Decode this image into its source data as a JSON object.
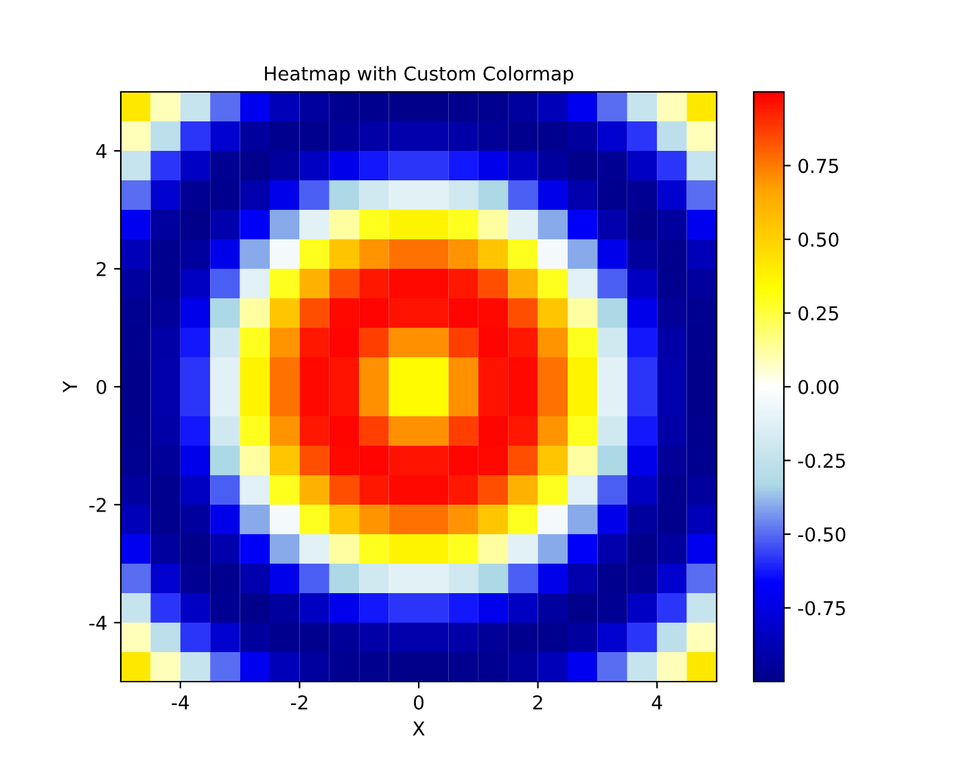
{
  "chart_data": {
    "type": "heatmap",
    "title": "Heatmap with Custom Colormap",
    "xlabel": "X",
    "ylabel": "Y",
    "x": [
      -4.75,
      -4.25,
      -3.75,
      -3.25,
      -2.75,
      -2.25,
      -1.75,
      -1.25,
      -0.75,
      -0.25,
      0.25,
      0.75,
      1.25,
      1.75,
      2.25,
      2.75,
      3.25,
      3.75,
      4.25,
      4.75
    ],
    "y": [
      4.75,
      4.25,
      3.75,
      3.25,
      2.75,
      2.25,
      1.75,
      1.25,
      0.75,
      0.25,
      -0.25,
      -0.75,
      -1.25,
      -1.75,
      -2.25,
      -2.75,
      -3.25,
      -3.75,
      -4.25,
      -4.75
    ],
    "xlim": [
      -5,
      5
    ],
    "ylim": [
      -5,
      5
    ],
    "xticks": [
      -4,
      -2,
      0,
      2,
      4
    ],
    "yticks": [
      -4,
      -2,
      0,
      2,
      4
    ],
    "colors": [
      "#00008b",
      "#0000ff",
      "#add8e6",
      "#ffffff",
      "#ffff00",
      "#ffa500",
      "#ff0000"
    ],
    "clim": [
      -1,
      1
    ],
    "cticks": [
      -0.75,
      {
        "value": -0.5,
        "label": "-0.50"
      },
      -0.25,
      {
        "value": 0,
        "label": "0.00"
      },
      0.25,
      {
        "value": 0.5,
        "label": "0.50"
      },
      0.75
    ],
    "cells": [
      [
        0.42,
        0.09,
        -0.23,
        -0.5,
        -0.71,
        -0.86,
        -0.94,
        -0.98,
        -0.99,
        -1.0,
        -1.0,
        -0.99,
        -0.98,
        -0.94,
        -0.86,
        -0.71,
        -0.5,
        -0.23,
        0.09,
        0.42
      ],
      [
        0.09,
        -0.27,
        -0.58,
        -0.8,
        -0.94,
        -0.99,
        -0.99,
        -0.96,
        -0.92,
        -0.9,
        -0.9,
        -0.92,
        -0.96,
        -0.99,
        -0.99,
        -0.94,
        -0.8,
        -0.58,
        -0.27,
        0.09
      ],
      [
        -0.23,
        -0.58,
        -0.83,
        -0.97,
        -1.0,
        -0.94,
        -0.84,
        -0.72,
        -0.63,
        -0.58,
        -0.58,
        -0.63,
        -0.72,
        -0.84,
        -0.94,
        -1.0,
        -0.97,
        -0.83,
        -0.58,
        -0.23
      ],
      [
        -0.5,
        -0.8,
        -0.97,
        -0.99,
        -0.9,
        -0.72,
        -0.52,
        -0.33,
        -0.19,
        -0.12,
        -0.12,
        -0.19,
        -0.33,
        -0.52,
        -0.72,
        -0.9,
        -0.99,
        -0.97,
        -0.8,
        -0.5
      ],
      [
        -0.71,
        -0.94,
        -1.0,
        -0.9,
        -0.68,
        -0.4,
        -0.12,
        0.12,
        0.29,
        0.37,
        0.37,
        0.29,
        0.12,
        -0.12,
        -0.4,
        -0.68,
        -0.9,
        -1.0,
        -0.94,
        -0.71
      ],
      [
        -0.86,
        -0.99,
        -0.94,
        -0.72,
        -0.4,
        -0.04,
        0.29,
        0.54,
        0.7,
        0.77,
        0.77,
        0.7,
        0.54,
        0.29,
        -0.04,
        -0.4,
        -0.72,
        -0.94,
        -0.99,
        -0.86
      ],
      [
        -0.94,
        -0.99,
        -0.84,
        -0.52,
        -0.12,
        0.29,
        0.62,
        0.84,
        0.95,
        0.98,
        0.98,
        0.95,
        0.84,
        0.62,
        0.29,
        -0.12,
        -0.52,
        -0.84,
        -0.99,
        -0.94
      ],
      [
        -0.98,
        -0.96,
        -0.72,
        -0.33,
        0.12,
        0.54,
        0.84,
        0.98,
        0.99,
        0.96,
        0.96,
        0.99,
        0.98,
        0.84,
        0.54,
        0.12,
        -0.33,
        -0.72,
        -0.96,
        -0.98
      ],
      [
        -0.99,
        -0.92,
        -0.63,
        -0.19,
        0.29,
        0.7,
        0.95,
        0.99,
        0.87,
        0.71,
        0.71,
        0.87,
        0.99,
        0.95,
        0.7,
        0.29,
        -0.19,
        -0.63,
        -0.92,
        -0.99
      ],
      [
        -1.0,
        -0.9,
        -0.58,
        -0.12,
        0.37,
        0.77,
        0.98,
        0.96,
        0.71,
        0.35,
        0.35,
        0.71,
        0.96,
        0.98,
        0.77,
        0.37,
        -0.12,
        -0.58,
        -0.9,
        -1.0
      ],
      [
        -1.0,
        -0.9,
        -0.58,
        -0.12,
        0.37,
        0.77,
        0.98,
        0.96,
        0.71,
        0.35,
        0.35,
        0.71,
        0.96,
        0.98,
        0.77,
        0.37,
        -0.12,
        -0.58,
        -0.9,
        -1.0
      ],
      [
        -0.99,
        -0.92,
        -0.63,
        -0.19,
        0.29,
        0.7,
        0.95,
        0.99,
        0.87,
        0.71,
        0.71,
        0.87,
        0.99,
        0.95,
        0.7,
        0.29,
        -0.19,
        -0.63,
        -0.92,
        -0.99
      ],
      [
        -0.98,
        -0.96,
        -0.72,
        -0.33,
        0.12,
        0.54,
        0.84,
        0.98,
        0.99,
        0.96,
        0.96,
        0.99,
        0.98,
        0.84,
        0.54,
        0.12,
        -0.33,
        -0.72,
        -0.96,
        -0.98
      ],
      [
        -0.94,
        -0.99,
        -0.84,
        -0.52,
        -0.12,
        0.29,
        0.62,
        0.84,
        0.95,
        0.98,
        0.98,
        0.95,
        0.84,
        0.62,
        0.29,
        -0.12,
        -0.52,
        -0.84,
        -0.99,
        -0.94
      ],
      [
        -0.86,
        -0.99,
        -0.94,
        -0.72,
        -0.4,
        -0.04,
        0.29,
        0.54,
        0.7,
        0.77,
        0.77,
        0.7,
        0.54,
        0.29,
        -0.04,
        -0.4,
        -0.72,
        -0.94,
        -0.99,
        -0.86
      ],
      [
        -0.71,
        -0.94,
        -1.0,
        -0.9,
        -0.68,
        -0.4,
        -0.12,
        0.12,
        0.29,
        0.37,
        0.37,
        0.29,
        0.12,
        -0.12,
        -0.4,
        -0.68,
        -0.9,
        -1.0,
        -0.94,
        -0.71
      ],
      [
        -0.5,
        -0.8,
        -0.97,
        -0.99,
        -0.9,
        -0.72,
        -0.52,
        -0.33,
        -0.19,
        -0.12,
        -0.12,
        -0.19,
        -0.33,
        -0.52,
        -0.72,
        -0.9,
        -0.99,
        -0.97,
        -0.8,
        -0.5
      ],
      [
        -0.23,
        -0.58,
        -0.83,
        -0.97,
        -1.0,
        -0.94,
        -0.84,
        -0.72,
        -0.63,
        -0.58,
        -0.58,
        -0.63,
        -0.72,
        -0.84,
        -0.94,
        -1.0,
        -0.97,
        -0.83,
        -0.58,
        -0.23
      ],
      [
        0.09,
        -0.27,
        -0.58,
        -0.8,
        -0.94,
        -0.99,
        -0.99,
        -0.96,
        -0.92,
        -0.9,
        -0.9,
        -0.92,
        -0.96,
        -0.99,
        -0.99,
        -0.94,
        -0.8,
        -0.58,
        -0.27,
        0.09
      ],
      [
        0.42,
        0.09,
        -0.23,
        -0.5,
        -0.71,
        -0.86,
        -0.94,
        -0.98,
        -0.99,
        -1.0,
        -1.0,
        -0.99,
        -0.98,
        -0.94,
        -0.86,
        -0.71,
        -0.5,
        -0.23,
        0.09,
        0.42
      ]
    ]
  }
}
